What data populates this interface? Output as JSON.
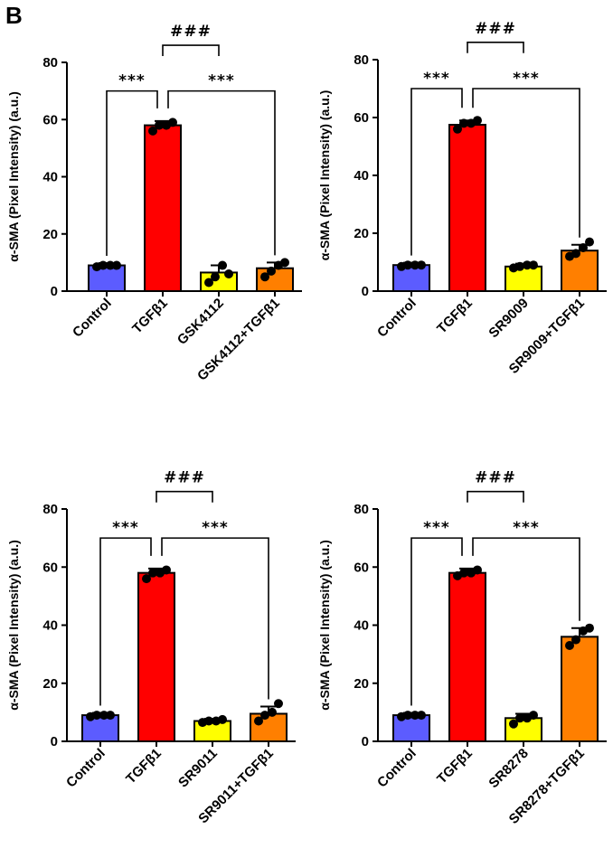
{
  "panel_letter": "B",
  "colors": {
    "control": "#5c5cff",
    "tgf": "#ff0000",
    "agonist": "#ffff00",
    "combo": "#ff7f00",
    "points": "#000000"
  },
  "chart_data": [
    {
      "type": "bar",
      "ylabel": "α-SMA (Pixel Intensity) (a.u.)",
      "ylim": [
        0,
        80
      ],
      "yticks": [
        0,
        20,
        40,
        60,
        80
      ],
      "categories": [
        "Control",
        "TGFβ1",
        "GSK4112",
        "GSK4112+TGFβ1"
      ],
      "values": [
        9,
        58,
        6.5,
        8
      ],
      "errors": [
        0.8,
        1.5,
        2.5,
        2
      ],
      "points": [
        [
          8.5,
          9,
          9,
          9
        ],
        [
          56,
          58,
          58,
          59
        ],
        [
          3,
          5,
          9,
          6
        ],
        [
          5,
          7,
          9,
          10
        ]
      ],
      "significance": [
        {
          "from": 0,
          "to": 1,
          "label": "***"
        },
        {
          "from": 1,
          "to": 3,
          "label": "***"
        },
        {
          "from": 1,
          "to": 2,
          "label": "###"
        }
      ]
    },
    {
      "type": "bar",
      "ylabel": "α-SMA (Pixel Intensity) (a.u.)",
      "ylim": [
        0,
        80
      ],
      "yticks": [
        0,
        20,
        40,
        60,
        80
      ],
      "categories": [
        "Control",
        "TGFβ1",
        "SR9009",
        "SR9009+TGFβ1"
      ],
      "values": [
        9,
        57.5,
        8.5,
        14
      ],
      "errors": [
        0.8,
        1.5,
        1,
        2
      ],
      "points": [
        [
          8.5,
          9,
          9,
          9
        ],
        [
          56,
          58,
          58,
          59
        ],
        [
          8,
          8.5,
          9,
          9
        ],
        [
          12,
          13,
          15,
          17
        ]
      ],
      "significance": [
        {
          "from": 0,
          "to": 1,
          "label": "***"
        },
        {
          "from": 1,
          "to": 3,
          "label": "***"
        },
        {
          "from": 1,
          "to": 2,
          "label": "###"
        }
      ]
    },
    {
      "type": "bar",
      "ylabel": "α-SMA (Pixel Intensity) (a.u.)",
      "ylim": [
        0,
        80
      ],
      "yticks": [
        0,
        20,
        40,
        60,
        80
      ],
      "categories": [
        "Control",
        "TGFβ1",
        "SR9011",
        "SR9011+TGFβ1"
      ],
      "values": [
        9,
        58,
        7,
        9.5
      ],
      "errors": [
        0.8,
        1.5,
        0.8,
        2.5
      ],
      "points": [
        [
          8.5,
          9,
          9,
          9
        ],
        [
          56,
          58,
          58,
          59
        ],
        [
          6.5,
          7,
          7,
          7.5
        ],
        [
          7,
          9,
          10,
          13
        ]
      ],
      "significance": [
        {
          "from": 0,
          "to": 1,
          "label": "***"
        },
        {
          "from": 1,
          "to": 3,
          "label": "***"
        },
        {
          "from": 1,
          "to": 2,
          "label": "###"
        }
      ]
    },
    {
      "type": "bar",
      "ylabel": "α-SMA (Pixel Intensity) (a.u.)",
      "ylim": [
        0,
        80
      ],
      "yticks": [
        0,
        20,
        40,
        60,
        80
      ],
      "categories": [
        "Control",
        "TGFβ1",
        "SR8278",
        "SR8278+TGFβ1"
      ],
      "values": [
        9,
        58,
        8,
        36
      ],
      "errors": [
        0.8,
        1.5,
        1.5,
        3
      ],
      "points": [
        [
          8.5,
          9,
          9,
          9
        ],
        [
          57,
          58,
          58,
          59
        ],
        [
          6,
          8,
          8,
          9
        ],
        [
          33,
          35,
          38,
          39
        ]
      ],
      "significance": [
        {
          "from": 0,
          "to": 1,
          "label": "***"
        },
        {
          "from": 1,
          "to": 3,
          "label": "***"
        },
        {
          "from": 1,
          "to": 2,
          "label": "###"
        }
      ]
    }
  ]
}
